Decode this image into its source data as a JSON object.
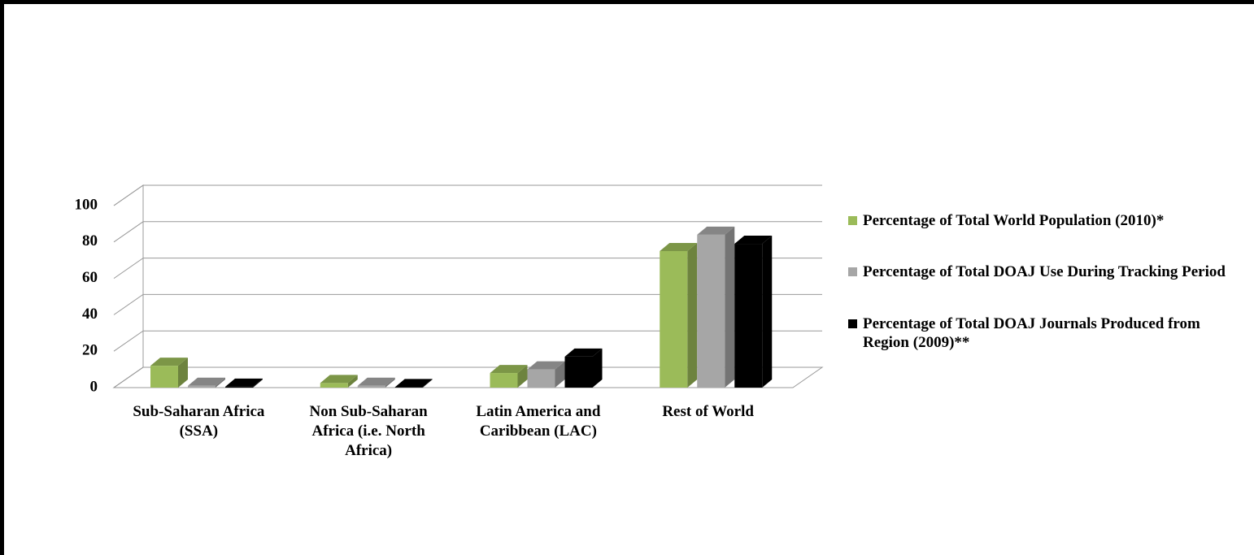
{
  "chart_data": {
    "type": "bar3d",
    "categories": [
      "Sub-Saharan Africa (SSA)",
      "Non Sub-Saharan Africa (i.e. North Africa)",
      "Latin America and Caribbean (LAC)",
      "Rest of World"
    ],
    "series": [
      {
        "name": "Percentage of Total World Population (2010)*",
        "color": "#9bbb59",
        "values": [
          12,
          2.5,
          8,
          75
        ]
      },
      {
        "name": "Percentage of Total DOAJ Use During Tracking Period",
        "color": "#a6a6a6",
        "values": [
          1,
          1,
          10,
          84
        ]
      },
      {
        "name": "Percentage of Total DOAJ Journals Produced from Region (2009)**",
        "color": "#000000",
        "values": [
          0.5,
          0.3,
          17,
          79
        ]
      }
    ],
    "ylim": [
      0,
      100
    ],
    "yticks": [
      0,
      20,
      40,
      60,
      80,
      100
    ],
    "grid": true,
    "legend": "right"
  }
}
